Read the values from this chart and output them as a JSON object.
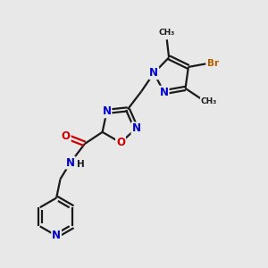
{
  "background_color": "#e8e8e8",
  "bond_color": "#1a1a1a",
  "atom_colors": {
    "N": "#0000cc",
    "O": "#cc0000",
    "Br": "#b85c00",
    "C": "#1a1a1a",
    "H": "#1a1a1a"
  },
  "bond_lw": 1.6,
  "font_size": 8.5,
  "font_size_small": 7.5
}
